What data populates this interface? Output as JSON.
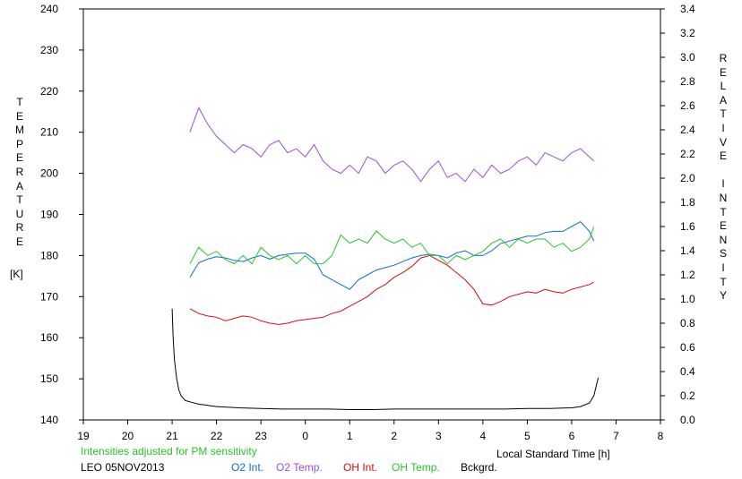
{
  "chart_data": {
    "type": "line",
    "left_axis_label": "TEMPERATURE",
    "left_axis_unit": "[K]",
    "right_axis_label": "RELATIVE INTENSITY",
    "xlabel": "Local Standard Time [h]",
    "x_tick_labels": [
      "19",
      "20",
      "21",
      "22",
      "23",
      "0",
      "1",
      "2",
      "3",
      "4",
      "5",
      "6",
      "7",
      "8"
    ],
    "xlim": [
      19,
      32
    ],
    "ylim_left": [
      140,
      240
    ],
    "y_ticks_left": [
      140,
      150,
      160,
      170,
      180,
      190,
      200,
      210,
      220,
      230,
      240
    ],
    "ylim_right": [
      0.0,
      3.4
    ],
    "y_ticks_right": [
      "0.0",
      "0.2",
      "0.4",
      "0.6",
      "0.8",
      "1.0",
      "1.2",
      "1.4",
      "1.6",
      "1.8",
      "2.0",
      "2.2",
      "2.4",
      "2.6",
      "2.8",
      "3.0",
      "3.2",
      "3.4"
    ],
    "note": "Intensities adjusted for PM sensitivity",
    "station_date": "LEO 05NOV2013",
    "colors": {
      "o2_int": "#0a6ed1",
      "o2_temp": "#9a4fd8",
      "oh_int": "#d80e0e",
      "oh_temp": "#2bc52b",
      "bckgrd": "#000000",
      "note": "#27c627"
    },
    "series": [
      {
        "name": "O2 Int.",
        "axis": "right",
        "x": [
          21.4,
          21.6,
          21.8,
          22.0,
          22.2,
          22.4,
          22.6,
          22.8,
          23.0,
          23.2,
          23.4,
          23.6,
          23.8,
          24.0,
          24.2,
          24.4,
          24.6,
          24.8,
          25.0,
          25.2,
          25.4,
          25.6,
          25.8,
          26.0,
          26.2,
          26.4,
          26.6,
          26.8,
          27.0,
          27.2,
          27.4,
          27.6,
          27.8,
          28.0,
          28.2,
          28.4,
          28.6,
          28.8,
          29.0,
          29.2,
          29.4,
          29.6,
          29.8,
          30.0,
          30.2,
          30.4,
          30.5
        ],
        "values": [
          1.18,
          1.3,
          1.33,
          1.35,
          1.34,
          1.32,
          1.31,
          1.34,
          1.36,
          1.33,
          1.36,
          1.37,
          1.38,
          1.38,
          1.33,
          1.2,
          1.16,
          1.12,
          1.08,
          1.16,
          1.2,
          1.24,
          1.26,
          1.28,
          1.31,
          1.34,
          1.36,
          1.37,
          1.36,
          1.34,
          1.38,
          1.4,
          1.36,
          1.36,
          1.4,
          1.46,
          1.48,
          1.5,
          1.52,
          1.52,
          1.55,
          1.56,
          1.56,
          1.6,
          1.64,
          1.56,
          1.48
        ]
      },
      {
        "name": "O2 Temp.",
        "axis": "left",
        "x": [
          21.4,
          21.6,
          21.8,
          22.0,
          22.2,
          22.4,
          22.6,
          22.8,
          23.0,
          23.2,
          23.4,
          23.6,
          23.8,
          24.0,
          24.2,
          24.4,
          24.6,
          24.8,
          25.0,
          25.2,
          25.4,
          25.6,
          25.8,
          26.0,
          26.2,
          26.4,
          26.6,
          26.8,
          27.0,
          27.2,
          27.4,
          27.6,
          27.8,
          28.0,
          28.2,
          28.4,
          28.6,
          28.8,
          29.0,
          29.2,
          29.4,
          29.6,
          29.8,
          30.0,
          30.2,
          30.4,
          30.5
        ],
        "values": [
          210,
          216,
          212,
          209,
          207,
          205,
          207,
          206,
          204,
          207,
          208,
          205,
          206,
          204,
          207,
          203,
          201,
          200,
          202,
          200,
          204,
          203,
          200,
          202,
          203,
          201,
          198,
          201,
          203,
          199,
          200,
          198,
          201,
          199,
          202,
          200,
          201,
          203,
          204,
          202,
          205,
          204,
          203,
          205,
          206,
          204,
          203
        ]
      },
      {
        "name": "OH Int.",
        "axis": "right",
        "x": [
          21.4,
          21.6,
          21.8,
          22.0,
          22.2,
          22.4,
          22.6,
          22.8,
          23.0,
          23.2,
          23.4,
          23.6,
          23.8,
          24.0,
          24.2,
          24.4,
          24.6,
          24.8,
          25.0,
          25.2,
          25.4,
          25.6,
          25.8,
          26.0,
          26.2,
          26.4,
          26.6,
          26.8,
          27.0,
          27.2,
          27.4,
          27.6,
          27.8,
          28.0,
          28.2,
          28.4,
          28.6,
          28.8,
          29.0,
          29.2,
          29.4,
          29.6,
          29.8,
          30.0,
          30.2,
          30.4,
          30.5
        ],
        "values": [
          0.92,
          0.88,
          0.86,
          0.85,
          0.82,
          0.84,
          0.86,
          0.85,
          0.82,
          0.8,
          0.79,
          0.8,
          0.82,
          0.83,
          0.84,
          0.85,
          0.88,
          0.9,
          0.94,
          0.98,
          1.02,
          1.08,
          1.12,
          1.18,
          1.22,
          1.27,
          1.34,
          1.36,
          1.32,
          1.28,
          1.22,
          1.16,
          1.08,
          0.96,
          0.95,
          0.98,
          1.02,
          1.04,
          1.06,
          1.05,
          1.08,
          1.06,
          1.05,
          1.08,
          1.1,
          1.12,
          1.14
        ]
      },
      {
        "name": "OH Temp.",
        "axis": "left",
        "x": [
          21.4,
          21.6,
          21.8,
          22.0,
          22.2,
          22.4,
          22.6,
          22.8,
          23.0,
          23.2,
          23.4,
          23.6,
          23.8,
          24.0,
          24.2,
          24.4,
          24.6,
          24.8,
          25.0,
          25.2,
          25.4,
          25.6,
          25.8,
          26.0,
          26.2,
          26.4,
          26.6,
          26.8,
          27.0,
          27.2,
          27.4,
          27.6,
          27.8,
          28.0,
          28.2,
          28.4,
          28.6,
          28.8,
          29.0,
          29.2,
          29.4,
          29.6,
          29.8,
          30.0,
          30.2,
          30.4,
          30.5
        ],
        "values": [
          178,
          182,
          180,
          181,
          179,
          178,
          180,
          178,
          182,
          180,
          179,
          180,
          178,
          180,
          178,
          178,
          180,
          185,
          183,
          184,
          183,
          186,
          184,
          183,
          184,
          182,
          183,
          180,
          180,
          178,
          180,
          179,
          180,
          181,
          183,
          184,
          182,
          184,
          183,
          184,
          184,
          182,
          183,
          181,
          182,
          184,
          187
        ]
      },
      {
        "name": "Bckgrd.",
        "axis": "right",
        "x": [
          21.0,
          21.02,
          21.05,
          21.1,
          21.15,
          21.2,
          21.3,
          21.4,
          21.6,
          21.8,
          22.0,
          22.5,
          23.0,
          23.5,
          24.0,
          24.5,
          25.0,
          25.5,
          26.0,
          26.5,
          27.0,
          27.5,
          28.0,
          28.5,
          29.0,
          29.5,
          30.0,
          30.2,
          30.4,
          30.5,
          30.6
        ],
        "values": [
          0.92,
          0.7,
          0.5,
          0.35,
          0.25,
          0.2,
          0.16,
          0.15,
          0.13,
          0.12,
          0.11,
          0.1,
          0.095,
          0.09,
          0.09,
          0.09,
          0.085,
          0.085,
          0.09,
          0.09,
          0.09,
          0.09,
          0.09,
          0.09,
          0.095,
          0.095,
          0.1,
          0.11,
          0.14,
          0.2,
          0.35
        ]
      }
    ]
  }
}
